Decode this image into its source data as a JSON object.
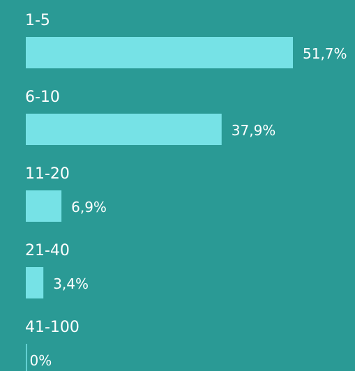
{
  "chart_data": {
    "type": "hbar",
    "categories": [
      "1-5",
      "6-10",
      "11-20",
      "21-40",
      "41-100"
    ],
    "values": [
      51.7,
      37.9,
      6.9,
      3.4,
      0
    ],
    "value_labels": [
      "51,7%",
      "37,9%",
      "6,9%",
      "3,4%",
      "0%"
    ],
    "color": "#76e2e6"
  }
}
